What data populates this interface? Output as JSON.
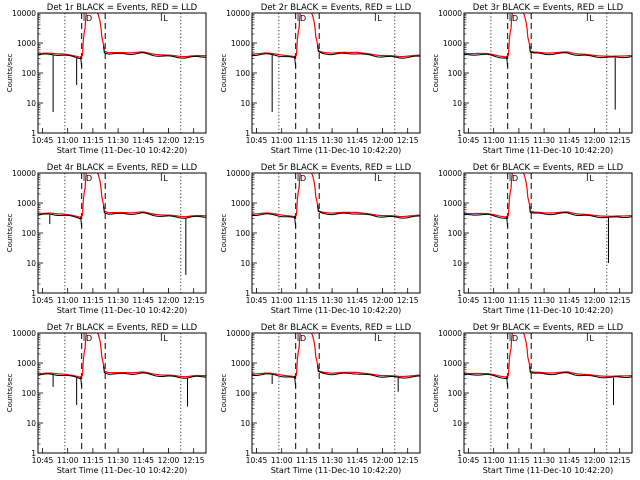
{
  "figure": {
    "xlabel": "Start Time (11-Dec-10 10:42:20)",
    "ylabel": "Counts/sec",
    "x_tick_labels": [
      "10:45",
      "11:00",
      "11:15",
      "11:30",
      "11:45",
      "12:00",
      "12:15"
    ],
    "y_tick_labels": [
      "1",
      "10",
      "100",
      "1000",
      "10000"
    ],
    "marker_letters": [
      "D",
      "L"
    ],
    "colors": {
      "events": "#000000",
      "lld": "#ff0000",
      "axes": "#000000",
      "background": "#ffffff"
    }
  },
  "chart_data": [
    {
      "type": "line",
      "title": "Det 1r BLACK = Events, RED = LLD",
      "xlabel": "Start Time (11-Dec-10 10:42:20)",
      "ylabel": "Counts/sec",
      "xlim_minutes_after_10_42_20": [
        0,
        100
      ],
      "ylim": [
        1,
        10000
      ],
      "yscale": "log",
      "series": [
        {
          "name": "Events",
          "color": "#000000"
        },
        {
          "name": "LLD",
          "color": "#ff0000"
        }
      ],
      "dropouts": [
        {
          "t": 9,
          "min": 5
        },
        {
          "t": 23,
          "min": 40
        }
      ],
      "gaps": [
        {
          "t": 26,
          "min": 160
        }
      ],
      "dashed_markers_min": [
        26,
        40
      ],
      "dotted_markers_min": [
        16,
        85
      ],
      "markers": [
        {
          "t": 28,
          "label": "D"
        },
        {
          "t": 74,
          "label": "L"
        }
      ]
    },
    {
      "type": "line",
      "title": "Det 2r BLACK = Events, RED = LLD",
      "xlabel": "Start Time (11-Dec-10 10:42:20)",
      "ylabel": "Counts/sec",
      "xlim_minutes_after_10_42_20": [
        0,
        100
      ],
      "ylim": [
        1,
        10000
      ],
      "yscale": "log",
      "series": [
        {
          "name": "Events",
          "color": "#000000"
        },
        {
          "name": "LLD",
          "color": "#ff0000"
        }
      ],
      "dropouts": [
        {
          "t": 12,
          "min": 5
        }
      ],
      "gaps": [
        {
          "t": 26,
          "min": 160
        }
      ],
      "dashed_markers_min": [
        26,
        40
      ],
      "dotted_markers_min": [
        16,
        85
      ],
      "markers": [
        {
          "t": 28,
          "label": "D"
        },
        {
          "t": 74,
          "label": "L"
        }
      ]
    },
    {
      "type": "line",
      "title": "Det 3r BLACK = Events, RED = LLD",
      "xlabel": "Start Time (11-Dec-10 10:42:20)",
      "ylabel": "Counts/sec",
      "xlim_minutes_after_10_42_20": [
        0,
        100
      ],
      "ylim": [
        1,
        10000
      ],
      "yscale": "log",
      "series": [
        {
          "name": "Events",
          "color": "#000000"
        },
        {
          "name": "LLD",
          "color": "#ff0000"
        }
      ],
      "dropouts": [
        {
          "t": 90,
          "min": 6
        }
      ],
      "gaps": [
        {
          "t": 26,
          "min": 160
        }
      ],
      "dashed_markers_min": [
        26,
        40
      ],
      "dotted_markers_min": [
        16,
        85
      ],
      "markers": [
        {
          "t": 28,
          "label": "D"
        },
        {
          "t": 74,
          "label": "L"
        }
      ]
    },
    {
      "type": "line",
      "title": "Det 4r BLACK = Events, RED = LLD",
      "xlabel": "Start Time (11-Dec-10 10:42:20)",
      "ylabel": "Counts/sec",
      "xlim_minutes_after_10_42_20": [
        0,
        100
      ],
      "ylim": [
        1,
        10000
      ],
      "yscale": "log",
      "series": [
        {
          "name": "Events",
          "color": "#000000"
        },
        {
          "name": "LLD",
          "color": "#ff0000"
        }
      ],
      "dropouts": [
        {
          "t": 7,
          "min": 200
        },
        {
          "t": 88,
          "min": 4
        }
      ],
      "gaps": [
        {
          "t": 26,
          "min": 160
        }
      ],
      "dashed_markers_min": [
        26,
        40
      ],
      "dotted_markers_min": [
        16,
        85
      ],
      "markers": [
        {
          "t": 28,
          "label": "D"
        },
        {
          "t": 74,
          "label": "L"
        }
      ]
    },
    {
      "type": "line",
      "title": "Det 5r BLACK = Events, RED = LLD",
      "xlabel": "Start Time (11-Dec-10 10:42:20)",
      "ylabel": "Counts/sec",
      "xlim_minutes_after_10_42_20": [
        0,
        100
      ],
      "ylim": [
        1,
        10000
      ],
      "yscale": "log",
      "series": [
        {
          "name": "Events",
          "color": "#000000"
        },
        {
          "name": "LLD",
          "color": "#ff0000"
        }
      ],
      "dropouts": [],
      "gaps": [
        {
          "t": 26,
          "min": 160
        }
      ],
      "dashed_markers_min": [
        26,
        40
      ],
      "dotted_markers_min": [
        16,
        85
      ],
      "markers": [
        {
          "t": 28,
          "label": "D"
        },
        {
          "t": 74,
          "label": "L"
        }
      ]
    },
    {
      "type": "line",
      "title": "Det 6r BLACK = Events, RED = LLD",
      "xlabel": "Start Time (11-Dec-10 10:42:20)",
      "ylabel": "Counts/sec",
      "xlim_minutes_after_10_42_20": [
        0,
        100
      ],
      "ylim": [
        1,
        10000
      ],
      "yscale": "log",
      "series": [
        {
          "name": "Events",
          "color": "#000000"
        },
        {
          "name": "LLD",
          "color": "#ff0000"
        }
      ],
      "dropouts": [
        {
          "t": 86,
          "min": 10
        }
      ],
      "gaps": [
        {
          "t": 26,
          "min": 160
        }
      ],
      "dashed_markers_min": [
        26,
        40
      ],
      "dotted_markers_min": [
        16,
        85
      ],
      "markers": [
        {
          "t": 28,
          "label": "D"
        },
        {
          "t": 74,
          "label": "L"
        }
      ]
    },
    {
      "type": "line",
      "title": "Det 7r BLACK = Events, RED = LLD",
      "xlabel": "Start Time (11-Dec-10 10:42:20)",
      "ylabel": "Counts/sec",
      "xlim_minutes_after_10_42_20": [
        0,
        100
      ],
      "ylim": [
        1,
        10000
      ],
      "yscale": "log",
      "series": [
        {
          "name": "Events",
          "color": "#000000"
        },
        {
          "name": "LLD",
          "color": "#ff0000"
        }
      ],
      "dropouts": [
        {
          "t": 9,
          "min": 160
        },
        {
          "t": 23,
          "min": 40
        },
        {
          "t": 89,
          "min": 35
        }
      ],
      "gaps": [
        {
          "t": 26,
          "min": 160
        }
      ],
      "dashed_markers_min": [
        26,
        40
      ],
      "dotted_markers_min": [
        16,
        85
      ],
      "markers": [
        {
          "t": 28,
          "label": "D"
        },
        {
          "t": 74,
          "label": "L"
        }
      ]
    },
    {
      "type": "line",
      "title": "Det 8r BLACK = Events, RED = LLD",
      "xlabel": "Start Time (11-Dec-10 10:42:20)",
      "ylabel": "Counts/sec",
      "xlim_minutes_after_10_42_20": [
        0,
        100
      ],
      "ylim": [
        1,
        10000
      ],
      "yscale": "log",
      "series": [
        {
          "name": "Events",
          "color": "#000000"
        },
        {
          "name": "LLD",
          "color": "#ff0000"
        }
      ],
      "dropouts": [
        {
          "t": 12,
          "min": 200
        },
        {
          "t": 87,
          "min": 110
        }
      ],
      "gaps": [
        {
          "t": 26,
          "min": 160
        }
      ],
      "dashed_markers_min": [
        26,
        40
      ],
      "dotted_markers_min": [
        16,
        85
      ],
      "markers": [
        {
          "t": 28,
          "label": "D"
        },
        {
          "t": 74,
          "label": "L"
        }
      ]
    },
    {
      "type": "line",
      "title": "Det 9r BLACK = Events, RED = LLD",
      "xlabel": "Start Time (11-Dec-10 10:42:20)",
      "ylabel": "Counts/sec",
      "xlim_minutes_after_10_42_20": [
        0,
        100
      ],
      "ylim": [
        1,
        10000
      ],
      "yscale": "log",
      "series": [
        {
          "name": "Events",
          "color": "#000000"
        },
        {
          "name": "LLD",
          "color": "#ff0000"
        }
      ],
      "dropouts": [
        {
          "t": 89,
          "min": 40
        }
      ],
      "gaps": [
        {
          "t": 26,
          "min": 160
        }
      ],
      "dashed_markers_min": [
        26,
        40
      ],
      "dotted_markers_min": [
        16,
        85
      ],
      "markers": [
        {
          "t": 28,
          "label": "D"
        },
        {
          "t": 74,
          "label": "L"
        }
      ]
    }
  ]
}
